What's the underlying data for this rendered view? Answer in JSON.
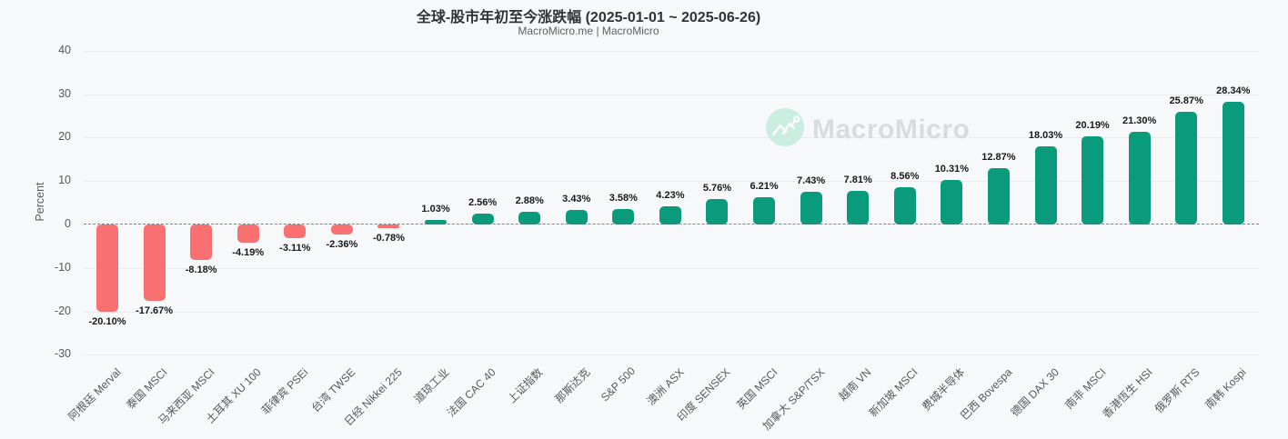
{
  "header": {
    "title": "全球-股市年初至今涨跌幅 (2025-01-01 ~ 2025-06-26)",
    "subtitle": "MacroMicro.me | MacroMicro"
  },
  "watermark": {
    "text": "MacroMicro",
    "icon": "macromicro-mountain-logo"
  },
  "colors": {
    "background": "#f7f8fa",
    "positive_bar": "#0a9b7d",
    "negative_bar": "#f87070",
    "gridline": "#e9ebee",
    "zero_line": "#6d7176",
    "axis_text": "#55585d",
    "value_label_text": "#17191c",
    "watermark_text": "#d9dbde",
    "watermark_circle": "#c9eee0"
  },
  "chart_data": {
    "type": "bar",
    "title": "全球-股市年初至今涨跌幅 (2025-01-01 ~ 2025-06-26)",
    "subtitle": "MacroMicro.me | MacroMicro",
    "xlabel": "",
    "ylabel": "Percent",
    "ylim": [
      -30,
      40
    ],
    "yticks": [
      40,
      30,
      20,
      10,
      0,
      -10,
      -20,
      -30
    ],
    "grid": true,
    "legend": false,
    "zero_line_style": "dashed",
    "categories": [
      "阿根廷 Merval",
      "泰国 MSCI",
      "马来西亚 MSCI",
      "土耳其 XU 100",
      "菲律宾 PSEi",
      "台湾 TWSE",
      "日经 Nikkei 225",
      "道琼工业",
      "法国 CAC 40",
      "上证指数",
      "那斯达克",
      "S&P 500",
      "澳洲 ASX",
      "印度 SENSEX",
      "英国 MSCI",
      "加拿大 S&P/TSX",
      "越南 VN",
      "新加坡 MSCI",
      "费城半导体",
      "巴西 Bovespa",
      "德国 DAX 30",
      "南非 MSCI",
      "香港恆生 HSI",
      "俄罗斯 RTS",
      "南韩 Kospi"
    ],
    "values": [
      -20.1,
      -17.67,
      -8.18,
      -4.19,
      -3.11,
      -2.36,
      -0.78,
      1.03,
      2.56,
      2.88,
      3.43,
      3.58,
      4.23,
      5.76,
      6.21,
      7.43,
      7.81,
      8.56,
      10.31,
      12.87,
      18.03,
      20.19,
      21.3,
      25.87,
      28.34
    ],
    "value_labels": [
      "-20.10%",
      "-17.67%",
      "-8.18%",
      "-4.19%",
      "-3.11%",
      "-2.36%",
      "-0.78%",
      "1.03%",
      "2.56%",
      "2.88%",
      "3.43%",
      "3.58%",
      "4.23%",
      "5.76%",
      "6.21%",
      "7.43%",
      "7.81%",
      "8.56%",
      "10.31%",
      "12.87%",
      "18.03%",
      "20.19%",
      "21.30%",
      "25.87%",
      "28.34%"
    ]
  }
}
